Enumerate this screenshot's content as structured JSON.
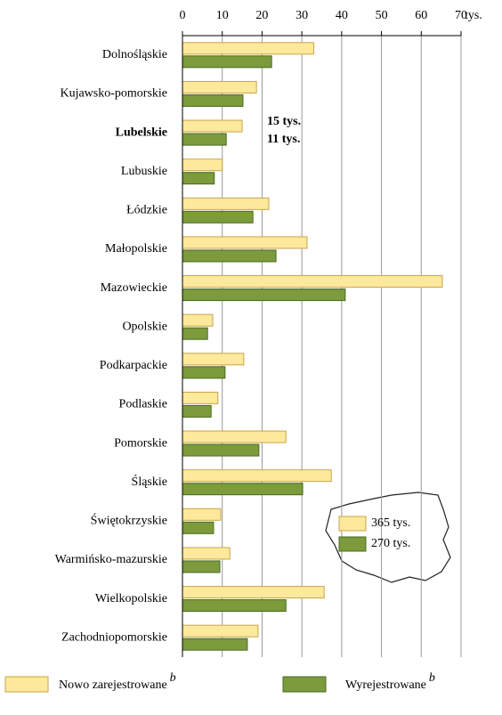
{
  "chart_data": {
    "type": "hbar",
    "categories": [
      "Dolnośląskie",
      "Kujawsko-pomorskie",
      "Lubelskie",
      "Lubuskie",
      "Łódzkie",
      "Małopolskie",
      "Mazowieckie",
      "Opolskie",
      "Podkarpackie",
      "Podlaskie",
      "Pomorskie",
      "Śląskie",
      "Świętokrzyskie",
      "Warmińsko-mazurskie",
      "Wielkopolskie",
      "Zachodniopomorskie"
    ],
    "bold_category": 2,
    "series": [
      {
        "name": "Nowo zarejestrowane",
        "superscript": "b",
        "total_label": "365 tys.",
        "color": "#fde99c",
        "stroke": "#c9a44c",
        "values": [
          33,
          18.6,
          15,
          10,
          21.7,
          31.3,
          65.3,
          7.6,
          15.4,
          8.9,
          26,
          37.4,
          9.6,
          11.9,
          35.6,
          19
        ]
      },
      {
        "name": "Wyrejestrowane",
        "superscript": "b",
        "total_label": "270 tys.",
        "color": "#7b9b3c",
        "stroke": "#4b6a22",
        "values": [
          22.4,
          15.2,
          11,
          8,
          17.7,
          23.5,
          40.9,
          6.3,
          10.7,
          7.2,
          19.2,
          30.2,
          7.8,
          9.4,
          26,
          16.3
        ]
      }
    ],
    "xlim": [
      0,
      70
    ],
    "xticks": [
      0,
      10,
      20,
      30,
      40,
      50,
      60,
      70
    ],
    "x_unit": "tys.",
    "grid": true,
    "annotations": [
      "15 tys.",
      "11 tys."
    ]
  }
}
